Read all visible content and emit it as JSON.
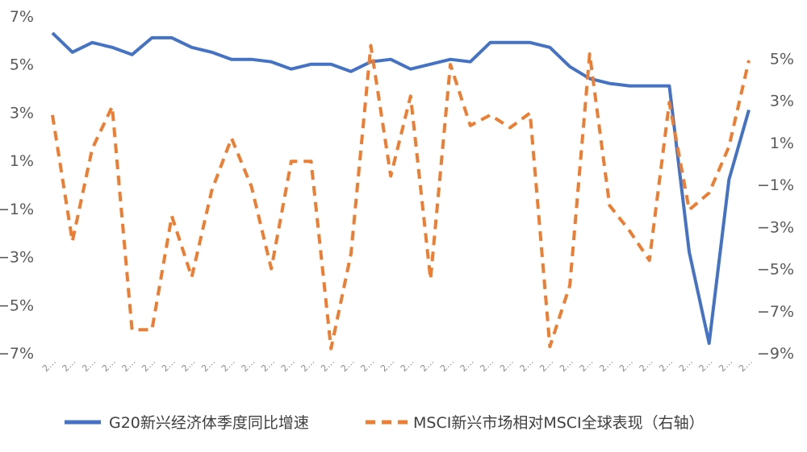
{
  "chart_data": {
    "type": "line",
    "x": [
      "2…",
      "2…",
      "2…",
      "2…",
      "2…",
      "2…",
      "2…",
      "2…",
      "2…",
      "2…",
      "2…",
      "2…",
      "2…",
      "2…",
      "2…",
      "2…",
      "2…",
      "2…",
      "2…",
      "2…",
      "2…",
      "2…",
      "2…",
      "2…",
      "2…",
      "2…",
      "2…",
      "2…",
      "2…",
      "2…",
      "2…",
      "2…",
      "2…",
      "2…",
      "2…",
      "2…"
    ],
    "y_left": {
      "ylim": [
        -7,
        7
      ],
      "ticks": [
        7,
        5,
        3,
        1,
        -1,
        -3,
        -5,
        -7
      ],
      "tick_labels": [
        "7%",
        "5%",
        "3%",
        "1%",
        "−1%",
        "−3%",
        "−5%",
        "−7%"
      ]
    },
    "y_right": {
      "ylim": [
        -9,
        7
      ],
      "ticks": [
        5,
        3,
        1,
        -1,
        -3,
        -5,
        -7,
        -9
      ],
      "tick_labels": [
        "5%",
        "3%",
        "1%",
        "−1%",
        "−3%",
        "−5%",
        "−7%",
        "−9%"
      ]
    },
    "series": [
      {
        "name": "G20新兴经济体季度同比增速",
        "axis": "left",
        "color": "#4472C4",
        "style": "solid",
        "values": [
          6.3,
          5.5,
          5.9,
          5.7,
          5.4,
          6.1,
          6.1,
          5.7,
          5.5,
          5.2,
          5.2,
          5.1,
          4.8,
          5.0,
          5.0,
          4.7,
          5.1,
          5.2,
          4.8,
          5.0,
          5.2,
          5.1,
          5.9,
          5.9,
          5.9,
          5.7,
          4.9,
          4.4,
          4.2,
          4.1,
          4.1,
          4.1,
          -2.8,
          -6.6,
          0.2,
          3.1
        ]
      },
      {
        "name": "MSCI新兴市场相对MSCI全球表现（右轴）",
        "axis": "right",
        "color": "#ED7D31",
        "style": "dashed",
        "values": [
          2.3,
          -3.7,
          0.7,
          2.7,
          -7.9,
          -7.9,
          -2.5,
          -5.4,
          -1.3,
          1.2,
          -1.1,
          -5.0,
          0.1,
          0.1,
          -8.8,
          -4.3,
          5.6,
          -0.6,
          3.2,
          -5.5,
          4.7,
          1.8,
          2.3,
          1.7,
          2.4,
          -8.7,
          -5.8,
          5.2,
          -2.0,
          -3.2,
          -4.6,
          2.9,
          -2.2,
          -1.4,
          0.8,
          4.9
        ]
      }
    ],
    "legend": "bottom",
    "grid": false,
    "title": "",
    "xlabel": "",
    "ylabel": ""
  }
}
